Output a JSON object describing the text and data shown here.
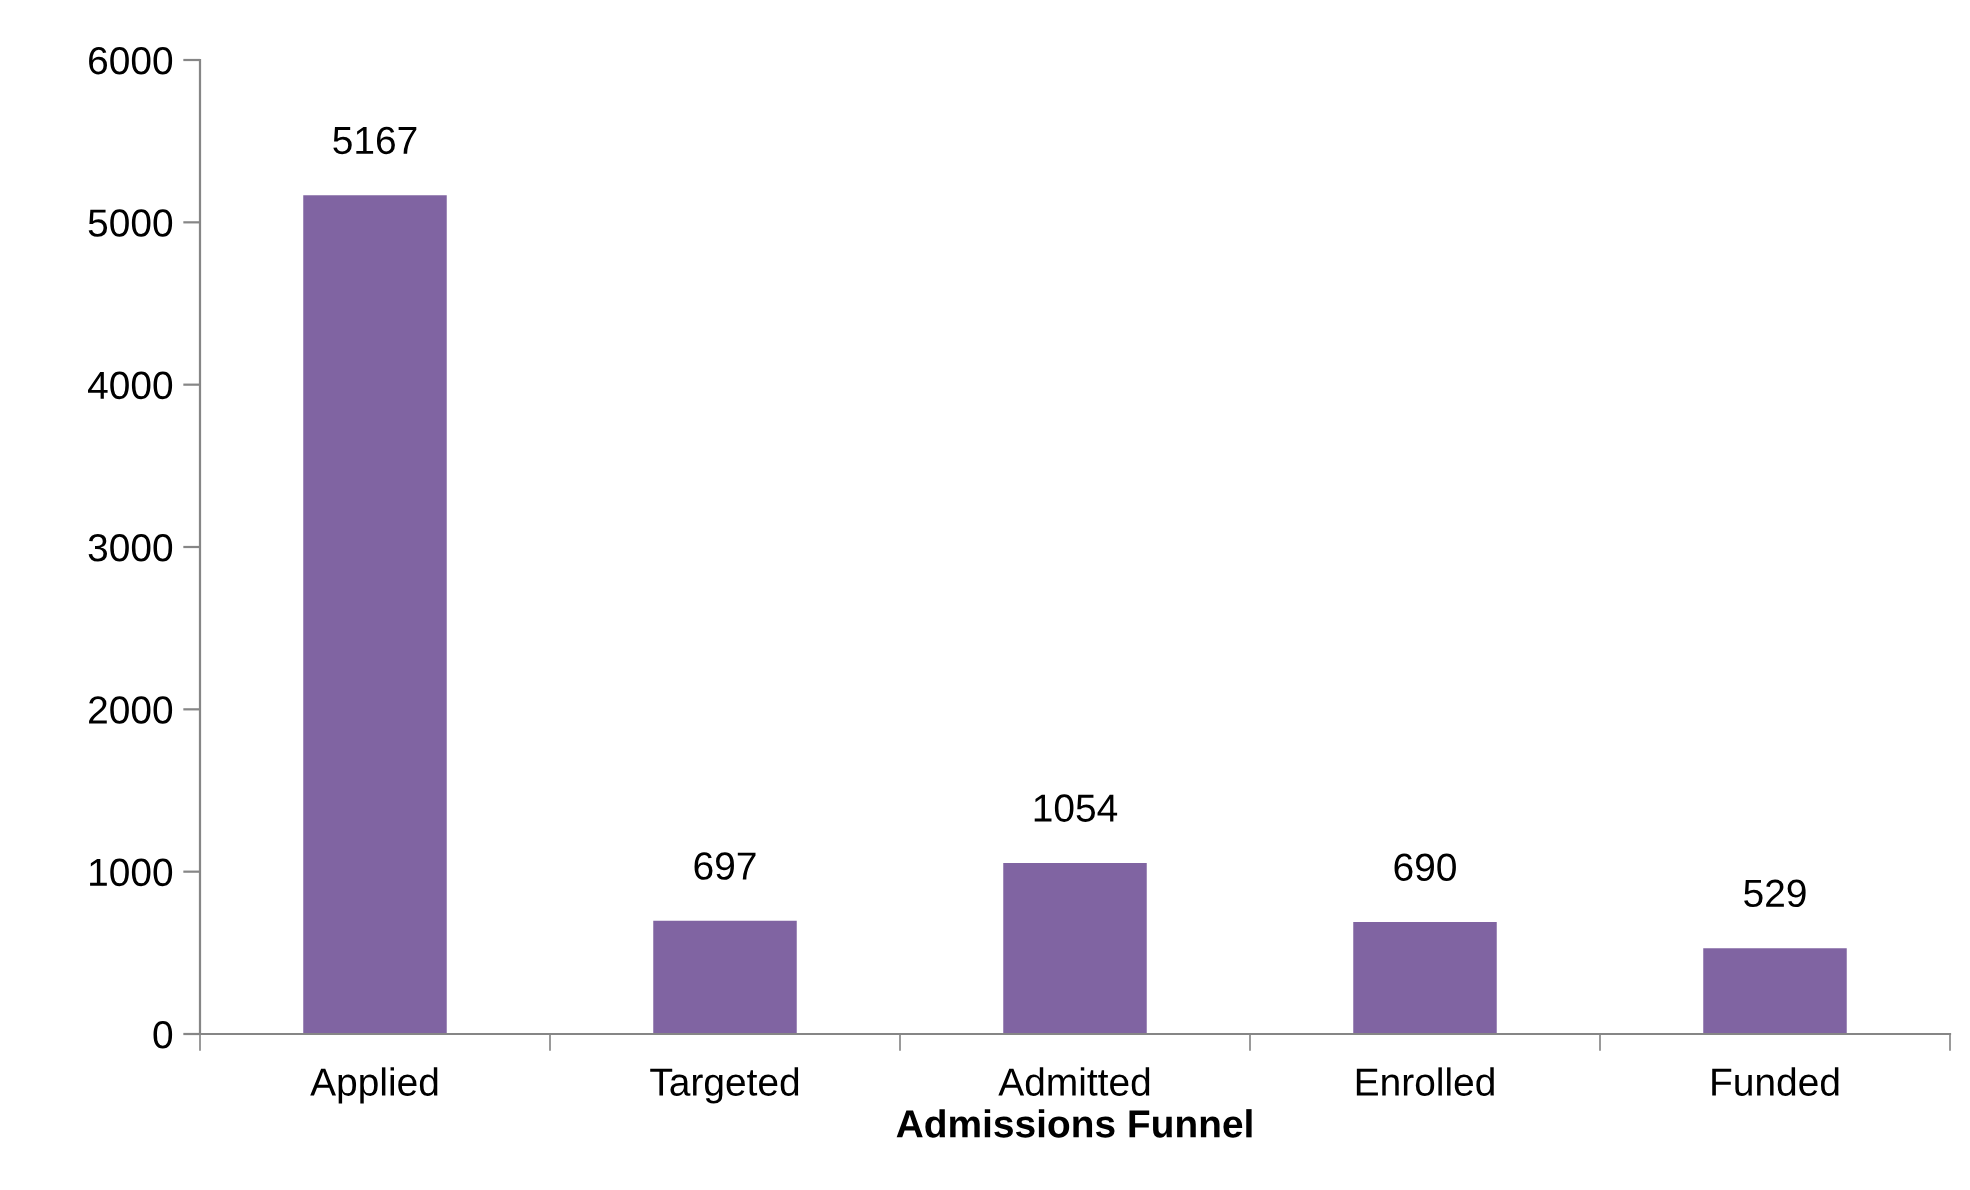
{
  "chart_data": {
    "type": "bar",
    "xlabel": "Admissions Funnel",
    "categories": [
      "Applied",
      "Targeted",
      "Admitted",
      "Enrolled",
      "Funded"
    ],
    "values": [
      5167,
      697,
      1054,
      690,
      529
    ],
    "color": "#8064a2",
    "ylim": [
      0,
      6000
    ],
    "yticks": [
      0,
      1000,
      2000,
      3000,
      4000,
      5000,
      6000
    ],
    "data_labels": true,
    "grid": false,
    "legend": false
  }
}
